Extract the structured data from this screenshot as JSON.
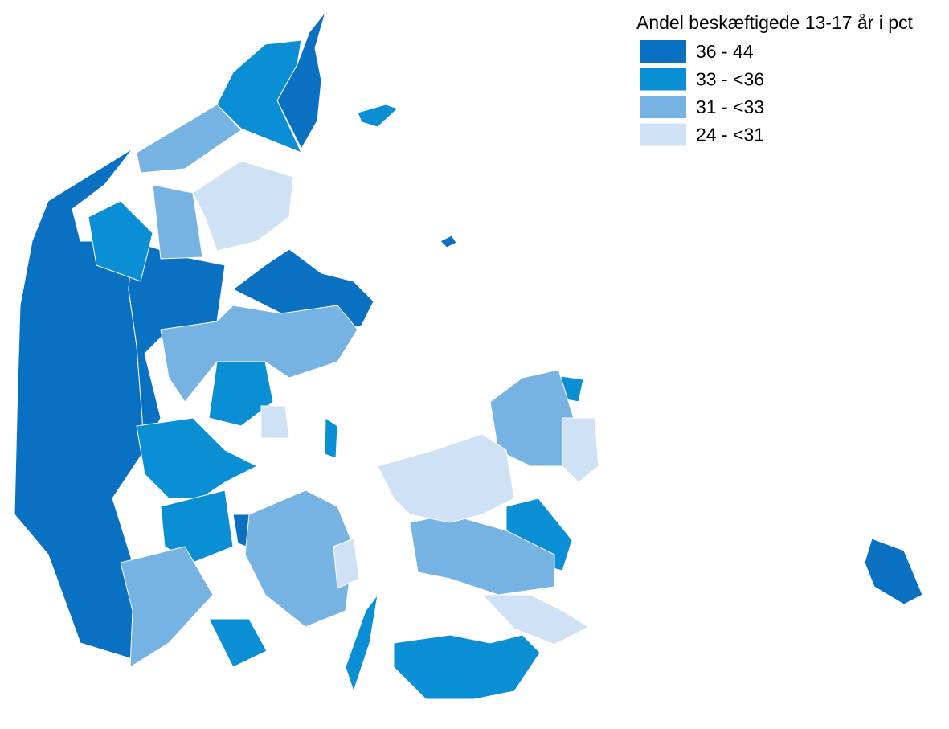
{
  "legend": {
    "title": "Andel beskæftigede 13-17 år i pct",
    "items": [
      {
        "label": "36 - 44",
        "color": "#0a71c2"
      },
      {
        "label": "33 - <36",
        "color": "#0b8fd4"
      },
      {
        "label": "31 - <33",
        "color": "#77b3e2"
      },
      {
        "label": "24 - <31",
        "color": "#cfe1f5"
      }
    ]
  }
}
